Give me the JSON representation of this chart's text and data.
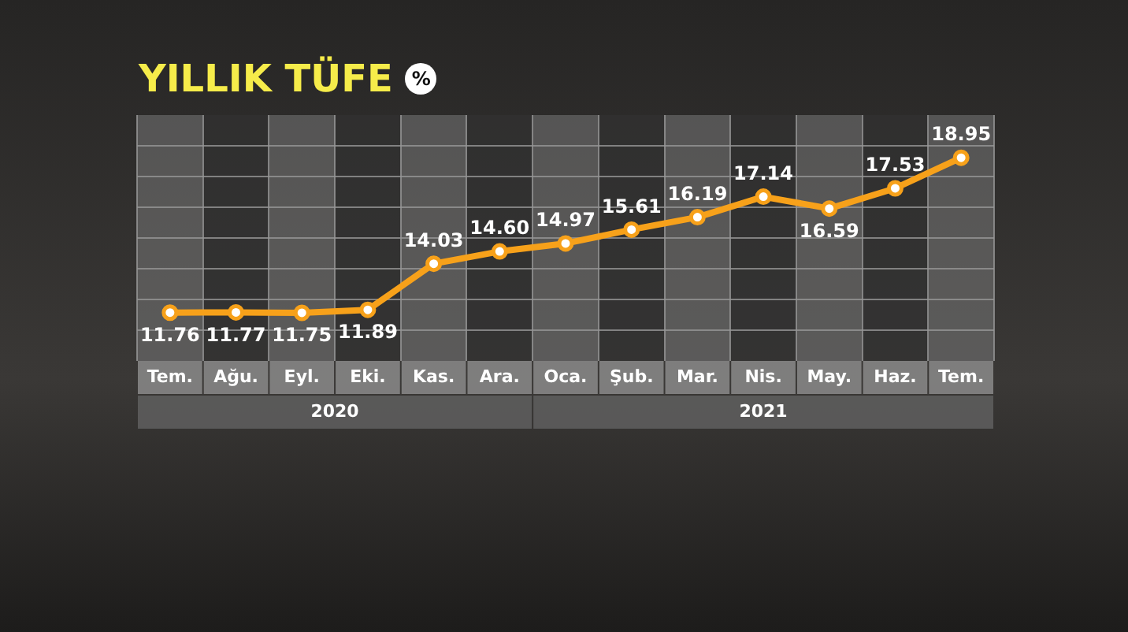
{
  "chart_data": {
    "type": "line",
    "title": "YILLIK TÜFE",
    "subtitle": "%",
    "categories": [
      "Tem.",
      "Ağu.",
      "Eyl.",
      "Eki.",
      "Kas.",
      "Ara.",
      "Oca.",
      "Şub.",
      "Mar.",
      "Nis.",
      "May.",
      "Haz.",
      "Tem."
    ],
    "series": [
      {
        "color": "#f7a11a",
        "values": [
          11.76,
          11.77,
          11.75,
          11.89,
          14.03,
          14.6,
          14.97,
          15.61,
          16.19,
          17.14,
          16.59,
          17.53,
          18.95
        ],
        "value_labels": [
          "11.76",
          "11.77",
          "11.75",
          "11.89",
          "14.03",
          "14.60",
          "14.97",
          "15.61",
          "16.19",
          "17.14",
          "16.59",
          "17.53",
          "18.95"
        ]
      }
    ],
    "grid": true,
    "legend": false,
    "marker": "circle",
    "line_style": "solid",
    "annotations": [
      "2020",
      "2021"
    ]
  }
}
